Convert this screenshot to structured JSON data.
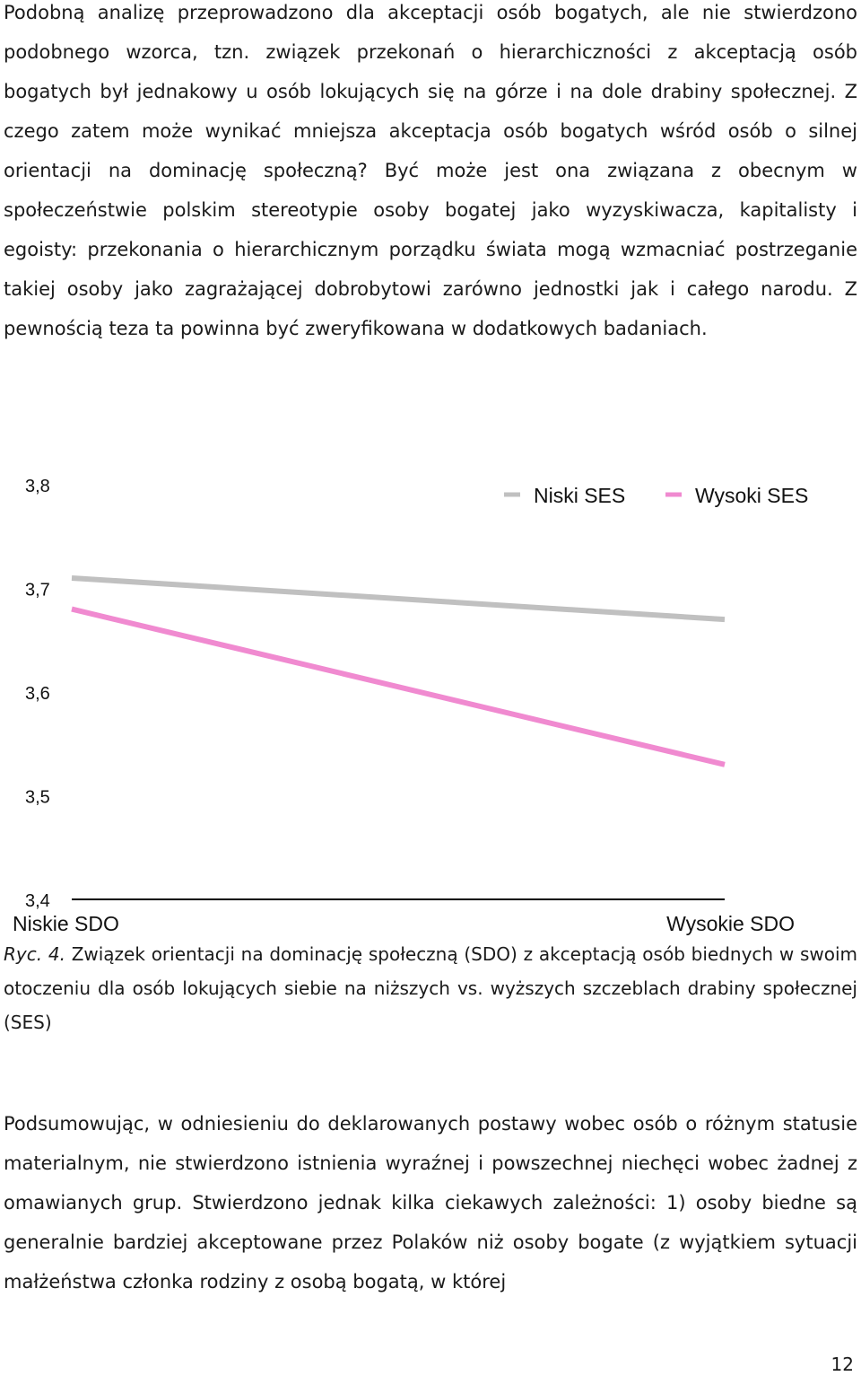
{
  "paragraphs": {
    "p1": "Podobną analizę przeprowadzono dla akceptacji osób bogatych, ale nie stwierdzono podobnego wzorca, tzn. związek przekonań o hierarchiczności z akceptacją osób bogatych był jednakowy u osób lokujących się na górze i na dole drabiny społecznej. Z czego zatem może wynikać mniejsza akceptacja osób bogatych wśród osób o silnej orientacji na dominację społeczną? Być może jest ona związana z obecnym w społeczeństwie polskim stereotypie osoby bogatej jako wyzyskiwacza, kapitalisty i egoisty: przekonania o hierarchicznym porządku świata mogą wzmacniać postrzeganie takiej osoby jako zagrażającej dobrobytowi zarówno jednostki jak i całego narodu. Z pewnością teza ta powinna być zweryfikowana w dodatkowych badaniach.",
    "p3": "Podsumowując, w odniesieniu do deklarowanych postawy wobec osób o różnym statusie materialnym, nie stwierdzono istnienia wyraźnej i powszechnej niechęci wobec żadnej z omawianych grup. Stwierdzono jednak kilka ciekawych zależności: 1) osoby biedne są generalnie bardziej akceptowane przez Polaków niż osoby bogate (z wyjątkiem sytuacji małżeństwa członka rodziny z osobą bogatą, w której"
  },
  "caption": {
    "label": "Ryc. 4.",
    "text": "Związek orientacji na dominację społeczną (SDO) z akceptacją osób biednych w swoim otoczeniu dla osób lokujących siebie na niższych vs. wyższych szczeblach drabiny społecznej (SES)"
  },
  "page_number": "12",
  "chart_data": {
    "type": "line",
    "x": [
      "Niskie SDO",
      "Wysokie SDO"
    ],
    "ylim": [
      3.4,
      3.8
    ],
    "yticks": [
      "3,4",
      "3,5",
      "3,6",
      "3,7",
      "3,8"
    ],
    "series": [
      {
        "name": "Niski SES",
        "values": [
          3.71,
          3.67
        ],
        "color": "#c0c0c0"
      },
      {
        "name": "Wysoki SES",
        "values": [
          3.68,
          3.53
        ],
        "color": "#f08ad0"
      }
    ],
    "legend": "top-right",
    "grid": false
  }
}
